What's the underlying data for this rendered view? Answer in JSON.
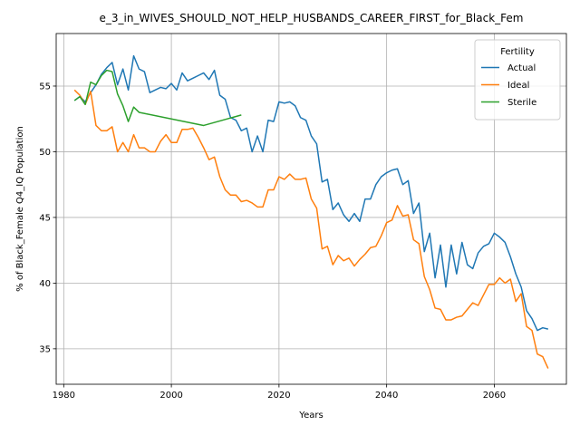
{
  "chart_data": {
    "type": "line",
    "title": "e_3_in_WIVES_SHOULD_NOT_HELP_HUSBANDS_CAREER_FIRST_for_Black_Fem",
    "xlabel": "Years",
    "ylabel": "% of Black_Female Q4_IQ Population",
    "xlim": [
      1978.6,
      2073.4
    ],
    "ylim": [
      32.3,
      59.0
    ],
    "xticks": [
      1980,
      2000,
      2020,
      2040,
      2060
    ],
    "yticks": [
      35,
      40,
      45,
      50,
      55
    ],
    "grid": true,
    "legend": {
      "title": "Fertility",
      "placement": "top-right"
    },
    "series": [
      {
        "name": "Actual",
        "color": "#1f77b4",
        "x": [
          1982,
          1983,
          1984,
          1985,
          1986,
          1987,
          1988,
          1989,
          1990,
          1991,
          1992,
          1993,
          1994,
          1995,
          1996,
          1997,
          1998,
          1999,
          2000,
          2001,
          2002,
          2003,
          2004,
          2005,
          2006,
          2007,
          2008,
          2009,
          2010,
          2011,
          2012,
          2013,
          2014,
          2015,
          2016,
          2017,
          2018,
          2019,
          2020,
          2021,
          2022,
          2023,
          2024,
          2025,
          2026,
          2027,
          2028,
          2029,
          2030,
          2031,
          2032,
          2033,
          2034,
          2035,
          2036,
          2037,
          2038,
          2039,
          2040,
          2041,
          2042,
          2043,
          2044,
          2045,
          2046,
          2047,
          2048,
          2049,
          2050,
          2051,
          2052,
          2053,
          2054,
          2055,
          2056,
          2057,
          2058,
          2059,
          2060,
          2061,
          2062,
          2063,
          2064,
          2065,
          2066,
          2067,
          2068,
          2069,
          2070
        ],
        "values": [
          53.9,
          54.2,
          53.8,
          54.5,
          55.1,
          55.9,
          56.4,
          56.8,
          55.1,
          56.3,
          54.7,
          57.3,
          56.3,
          56.1,
          54.5,
          54.7,
          54.9,
          54.8,
          55.2,
          54.7,
          56.0,
          55.4,
          55.6,
          55.8,
          56.0,
          55.5,
          56.2,
          54.3,
          54.0,
          52.6,
          52.4,
          51.6,
          51.8,
          50.0,
          51.2,
          50.0,
          52.4,
          52.3,
          53.8,
          53.7,
          53.8,
          53.5,
          52.6,
          52.4,
          51.2,
          50.6,
          47.7,
          47.9,
          45.6,
          46.1,
          45.2,
          44.7,
          45.3,
          44.7,
          46.4,
          46.4,
          47.5,
          48.1,
          48.4,
          48.6,
          48.7,
          47.5,
          47.8,
          45.3,
          46.1,
          42.4,
          43.8,
          40.4,
          42.9,
          39.7,
          42.9,
          40.7,
          43.1,
          41.4,
          41.1,
          42.3,
          42.8,
          43.0,
          43.8,
          43.5,
          43.1,
          42.0,
          40.7,
          39.7,
          37.9,
          37.3,
          36.4,
          36.6,
          36.5
        ]
      },
      {
        "name": "Ideal",
        "color": "#ff7f0e",
        "x": [
          1982,
          1983,
          1984,
          1985,
          1986,
          1987,
          1988,
          1989,
          1990,
          1991,
          1992,
          1993,
          1994,
          1995,
          1996,
          1997,
          1998,
          1999,
          2000,
          2001,
          2002,
          2003,
          2004,
          2005,
          2006,
          2007,
          2008,
          2009,
          2010,
          2011,
          2012,
          2013,
          2014,
          2015,
          2016,
          2017,
          2018,
          2019,
          2020,
          2021,
          2022,
          2023,
          2024,
          2025,
          2026,
          2027,
          2028,
          2029,
          2030,
          2031,
          2032,
          2033,
          2034,
          2035,
          2036,
          2037,
          2038,
          2039,
          2040,
          2041,
          2042,
          2043,
          2044,
          2045,
          2046,
          2047,
          2048,
          2049,
          2050,
          2051,
          2052,
          2053,
          2054,
          2055,
          2056,
          2057,
          2058,
          2059,
          2060,
          2061,
          2062,
          2063,
          2064,
          2065,
          2066,
          2067,
          2068,
          2069,
          2070
        ],
        "values": [
          54.7,
          54.3,
          53.6,
          54.6,
          52.0,
          51.6,
          51.6,
          51.9,
          50.0,
          50.7,
          50.0,
          51.3,
          50.3,
          50.3,
          50.0,
          50.0,
          50.8,
          51.3,
          50.7,
          50.7,
          51.7,
          51.7,
          51.8,
          51.1,
          50.3,
          49.4,
          49.6,
          48.1,
          47.1,
          46.7,
          46.7,
          46.2,
          46.3,
          46.1,
          45.8,
          45.8,
          47.1,
          47.1,
          48.1,
          47.9,
          48.3,
          47.9,
          47.9,
          48.0,
          46.4,
          45.7,
          42.6,
          42.8,
          41.4,
          42.1,
          41.7,
          41.9,
          41.3,
          41.8,
          42.2,
          42.7,
          42.8,
          43.6,
          44.6,
          44.8,
          45.9,
          45.1,
          45.2,
          43.3,
          43.0,
          40.5,
          39.5,
          38.1,
          38.0,
          37.2,
          37.2,
          37.4,
          37.5,
          38.0,
          38.5,
          38.3,
          39.1,
          39.9,
          39.9,
          40.4,
          40.0,
          40.3,
          38.6,
          39.2,
          36.7,
          36.4,
          34.6,
          34.4,
          33.5
        ]
      },
      {
        "name": "Sterile",
        "color": "#2ca02c",
        "x": [
          1982,
          1983,
          1984,
          1985,
          1986,
          1987,
          1988,
          1989,
          1990,
          1991,
          1992,
          1993,
          1994,
          2006,
          2013
        ],
        "values": [
          53.9,
          54.2,
          53.6,
          55.3,
          55.1,
          55.8,
          56.2,
          56.1,
          54.4,
          53.5,
          52.3,
          53.4,
          53.0,
          52.0,
          52.8
        ]
      }
    ]
  }
}
